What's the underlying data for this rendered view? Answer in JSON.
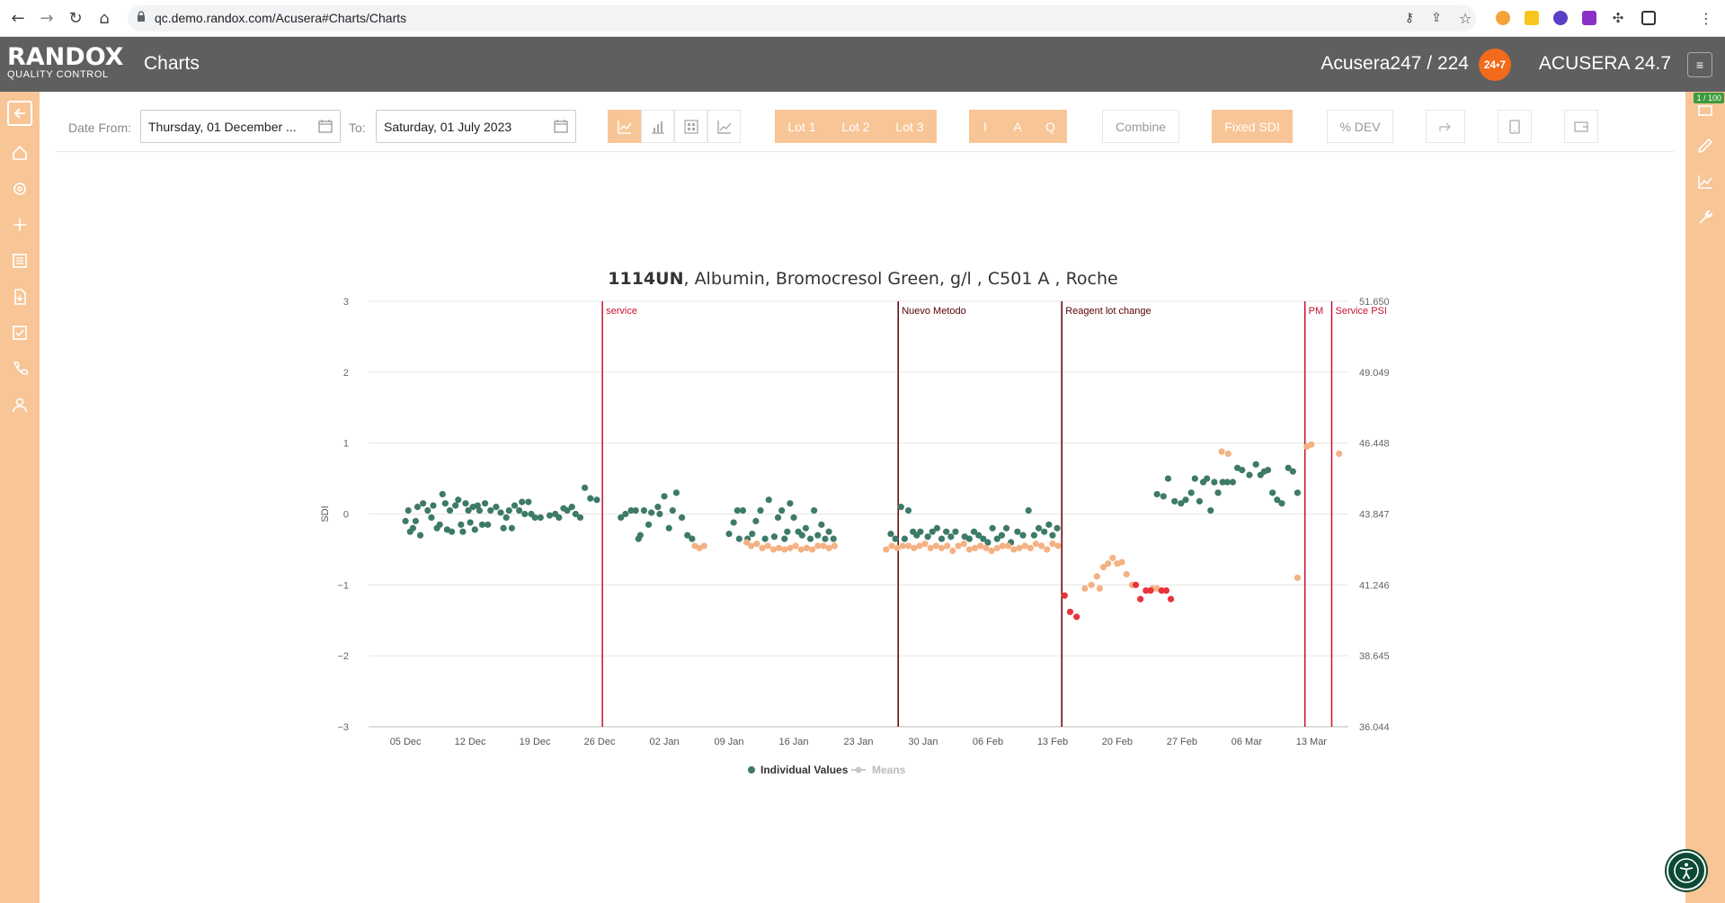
{
  "browser": {
    "url": "qc.demo.randox.com/Acusera#Charts/Charts",
    "icons": [
      "back-icon",
      "forward-icon",
      "reload-icon",
      "home-icon",
      "lock-icon",
      "key-icon",
      "share-icon",
      "star-icon",
      "extension-icon",
      "sidebar-icon",
      "kebab-icon"
    ]
  },
  "header": {
    "logo_main": "RANDOX",
    "logo_sub": "QUALITY CONTROL",
    "title": "Charts",
    "user": "Acusera247 / 224",
    "badge": "24•7",
    "brand": "ACUSERA 24.7",
    "menu_icon": "≡"
  },
  "left_sidebar": [
    "back-arrow-icon",
    "home-icon",
    "gear-icon",
    "plus-icon",
    "list-icon",
    "import-icon",
    "checklist-icon",
    "phone-icon",
    "user-icon"
  ],
  "right_sidebar": {
    "counter": "1 / 100",
    "icons": [
      "page-icon",
      "pencil-icon",
      "chart-icon",
      "wrench-icon"
    ]
  },
  "toolbar": {
    "date_from_label": "Date From:",
    "date_from_value": "Thursday, 01 December ...",
    "to_label": "To:",
    "to_value": "Saturday, 01 July 2023",
    "chart_type_icons": [
      "line-chart-icon",
      "bar-chart-icon",
      "grid-chart-icon",
      "trend-chart-icon"
    ],
    "lots": [
      "Lot 1",
      "Lot 2",
      "Lot 3"
    ],
    "modes": [
      "I",
      "A",
      "Q"
    ],
    "combine": "Combine",
    "fixed_sdi": "Fixed SDI",
    "pct_dev": "% DEV",
    "extra_icons": [
      "redo-icon",
      "tablet-icon",
      "wallet-icon"
    ]
  },
  "chart_data": {
    "type": "scatter",
    "title_bold": "1114UN",
    "title_rest": ", Albumin, Bromocresol Green, g/l , C501 A , Roche",
    "ylabel": "SDI",
    "ylim": [
      -3,
      3
    ],
    "y_ticks": [
      "−3",
      "−2",
      "−1",
      "0",
      "1",
      "2",
      "3"
    ],
    "y2_ticks": [
      "36.044",
      "38.645",
      "41.246",
      "43.847",
      "46.448",
      "49.049",
      "51.650"
    ],
    "x_ticks": [
      "05 Dec",
      "12 Dec",
      "19 Dec",
      "26 Dec",
      "02 Jan",
      "09 Jan",
      "16 Jan",
      "23 Jan",
      "30 Jan",
      "06 Feb",
      "13 Feb",
      "20 Feb",
      "27 Feb",
      "06 Mar",
      "13 Mar"
    ],
    "events": [
      {
        "label": "service",
        "x": 21.3,
        "color": "#c8102e"
      },
      {
        "label": "Nuevo Metodo",
        "x": 53.3,
        "color": "#5a0000"
      },
      {
        "label": "Reagent lot change",
        "x": 71.0,
        "color": "#5a0000"
      },
      {
        "label": "PM",
        "x": 97.3,
        "color": "#c8102e"
      },
      {
        "label": "Service PSI",
        "x": 100.2,
        "color": "#c8102e"
      }
    ],
    "legend": [
      {
        "name": "Individual Values",
        "color": "#3d7a68"
      },
      {
        "name": "Means",
        "color": "#c8c8c8"
      }
    ],
    "series": [
      {
        "name": "Individual Values",
        "color": "#3d7a68",
        "points": [
          [
            0,
            -0.1
          ],
          [
            0.3,
            0.05
          ],
          [
            0.5,
            -0.25
          ],
          [
            0.8,
            -0.2
          ],
          [
            1.1,
            -0.1
          ],
          [
            1.3,
            0.1
          ],
          [
            1.6,
            -0.3
          ],
          [
            1.9,
            0.15
          ],
          [
            2.4,
            0.05
          ],
          [
            2.8,
            -0.05
          ],
          [
            3.0,
            0.12
          ],
          [
            3.4,
            -0.2
          ],
          [
            3.7,
            -0.15
          ],
          [
            4.0,
            0.28
          ],
          [
            4.3,
            0.15
          ],
          [
            4.5,
            -0.22
          ],
          [
            4.8,
            0.05
          ],
          [
            5.0,
            -0.25
          ],
          [
            5.4,
            0.12
          ],
          [
            5.7,
            0.2
          ],
          [
            6.0,
            -0.15
          ],
          [
            6.2,
            -0.25
          ],
          [
            6.5,
            0.15
          ],
          [
            6.8,
            0.05
          ],
          [
            7.0,
            -0.12
          ],
          [
            7.3,
            0.1
          ],
          [
            7.5,
            -0.22
          ],
          [
            7.8,
            0.12
          ],
          [
            8.0,
            0.05
          ],
          [
            8.3,
            -0.15
          ],
          [
            8.6,
            0.15
          ],
          [
            8.9,
            -0.15
          ],
          [
            9.2,
            0.05
          ],
          [
            9.8,
            0.1
          ],
          [
            10.3,
            0.02
          ],
          [
            10.6,
            -0.2
          ],
          [
            10.9,
            -0.05
          ],
          [
            11.2,
            0.05
          ],
          [
            11.5,
            -0.2
          ],
          [
            11.8,
            0.12
          ],
          [
            12.3,
            0.05
          ],
          [
            12.6,
            0.17
          ],
          [
            12.9,
            0.0
          ],
          [
            13.3,
            0.17
          ],
          [
            13.6,
            0.0
          ],
          [
            14.0,
            -0.05
          ],
          [
            14.6,
            -0.05
          ],
          [
            15.6,
            -0.02
          ],
          [
            16.2,
            0.0
          ],
          [
            16.6,
            -0.05
          ],
          [
            17.1,
            0.08
          ],
          [
            17.5,
            0.05
          ],
          [
            18.0,
            0.1
          ],
          [
            18.4,
            0.0
          ],
          [
            18.9,
            -0.05
          ],
          [
            19.4,
            0.37
          ],
          [
            20.0,
            0.22
          ],
          [
            20.7,
            0.2
          ],
          [
            23.3,
            -0.05
          ],
          [
            23.8,
            0.0
          ],
          [
            24.4,
            0.05
          ],
          [
            24.9,
            0.05
          ],
          [
            25.2,
            -0.35
          ],
          [
            25.4,
            -0.3
          ],
          [
            25.8,
            0.05
          ],
          [
            26.3,
            -0.15
          ],
          [
            26.6,
            0.02
          ],
          [
            27.3,
            0.1
          ],
          [
            27.5,
            0.0
          ],
          [
            28.0,
            0.25
          ],
          [
            28.5,
            -0.2
          ],
          [
            28.9,
            0.05
          ],
          [
            29.3,
            0.3
          ],
          [
            29.9,
            -0.05
          ],
          [
            30.5,
            -0.3
          ],
          [
            31.0,
            -0.35
          ],
          [
            35.0,
            -0.28
          ],
          [
            35.5,
            -0.12
          ],
          [
            35.9,
            0.05
          ],
          [
            36.1,
            -0.35
          ],
          [
            36.5,
            0.05
          ],
          [
            37.0,
            -0.35
          ],
          [
            37.5,
            -0.28
          ],
          [
            37.9,
            -0.1
          ],
          [
            38.4,
            0.05
          ],
          [
            38.9,
            -0.35
          ],
          [
            39.3,
            0.2
          ],
          [
            39.9,
            -0.32
          ],
          [
            40.3,
            -0.05
          ],
          [
            40.7,
            0.05
          ],
          [
            41.0,
            -0.35
          ],
          [
            41.3,
            -0.25
          ],
          [
            41.6,
            0.15
          ],
          [
            42.0,
            -0.05
          ],
          [
            42.5,
            -0.25
          ],
          [
            42.9,
            -0.3
          ],
          [
            43.3,
            -0.2
          ],
          [
            43.8,
            -0.35
          ],
          [
            44.2,
            0.05
          ],
          [
            44.6,
            -0.3
          ],
          [
            45.0,
            -0.15
          ],
          [
            45.4,
            -0.35
          ],
          [
            45.8,
            -0.25
          ],
          [
            46.3,
            -0.35
          ],
          [
            52.5,
            -0.28
          ],
          [
            53.0,
            -0.35
          ],
          [
            53.6,
            0.1
          ],
          [
            54.0,
            -0.35
          ],
          [
            54.4,
            0.05
          ],
          [
            54.9,
            -0.25
          ],
          [
            55.3,
            -0.3
          ],
          [
            55.7,
            -0.25
          ],
          [
            56.5,
            -0.32
          ],
          [
            57.0,
            -0.25
          ],
          [
            57.5,
            -0.2
          ],
          [
            58.0,
            -0.35
          ],
          [
            58.5,
            -0.25
          ],
          [
            59.0,
            -0.32
          ],
          [
            59.5,
            -0.25
          ],
          [
            60.5,
            -0.32
          ],
          [
            61.0,
            -0.35
          ],
          [
            61.5,
            -0.25
          ],
          [
            62.0,
            -0.3
          ],
          [
            62.5,
            -0.35
          ],
          [
            63.0,
            -0.4
          ],
          [
            63.5,
            -0.2
          ],
          [
            64.0,
            -0.35
          ],
          [
            64.5,
            -0.3
          ],
          [
            65.0,
            -0.2
          ],
          [
            65.5,
            -0.4
          ],
          [
            66.2,
            -0.25
          ],
          [
            66.8,
            -0.3
          ],
          [
            67.4,
            0.05
          ],
          [
            68.0,
            -0.3
          ],
          [
            68.5,
            -0.2
          ],
          [
            69.1,
            -0.25
          ],
          [
            69.6,
            -0.15
          ],
          [
            70.0,
            -0.3
          ],
          [
            70.5,
            -0.2
          ],
          [
            81.3,
            0.28
          ],
          [
            82.0,
            0.25
          ],
          [
            82.5,
            0.5
          ],
          [
            83.2,
            0.18
          ],
          [
            83.9,
            0.15
          ],
          [
            84.4,
            0.2
          ],
          [
            85.0,
            0.3
          ],
          [
            85.4,
            0.5
          ],
          [
            85.9,
            0.18
          ],
          [
            86.3,
            0.45
          ],
          [
            86.7,
            0.5
          ],
          [
            87.1,
            0.05
          ],
          [
            87.5,
            0.45
          ],
          [
            87.9,
            0.3
          ],
          [
            88.4,
            0.45
          ],
          [
            88.9,
            0.45
          ],
          [
            89.5,
            0.45
          ],
          [
            90.0,
            0.65
          ],
          [
            90.5,
            0.62
          ],
          [
            91.3,
            0.55
          ],
          [
            92.0,
            0.7
          ],
          [
            92.5,
            0.55
          ],
          [
            92.9,
            0.6
          ],
          [
            93.3,
            0.62
          ],
          [
            93.8,
            0.3
          ],
          [
            94.3,
            0.2
          ],
          [
            94.8,
            0.15
          ],
          [
            95.5,
            0.65
          ],
          [
            96.0,
            0.6
          ],
          [
            96.5,
            0.3
          ]
        ]
      },
      {
        "name": "Lot 2",
        "color": "#f4b183",
        "points": [
          [
            31.3,
            -0.45
          ],
          [
            31.8,
            -0.48
          ],
          [
            32.3,
            -0.45
          ],
          [
            36.9,
            -0.4
          ],
          [
            37.4,
            -0.45
          ],
          [
            38.0,
            -0.42
          ],
          [
            38.6,
            -0.48
          ],
          [
            39.2,
            -0.45
          ],
          [
            39.8,
            -0.5
          ],
          [
            40.4,
            -0.48
          ],
          [
            41.0,
            -0.5
          ],
          [
            41.6,
            -0.48
          ],
          [
            42.2,
            -0.45
          ],
          [
            42.8,
            -0.5
          ],
          [
            43.4,
            -0.48
          ],
          [
            44.0,
            -0.5
          ],
          [
            44.6,
            -0.45
          ],
          [
            45.2,
            -0.45
          ],
          [
            45.8,
            -0.48
          ],
          [
            46.4,
            -0.45
          ],
          [
            52.0,
            -0.5
          ],
          [
            52.6,
            -0.45
          ],
          [
            53.2,
            -0.48
          ],
          [
            53.8,
            -0.45
          ],
          [
            54.4,
            -0.45
          ],
          [
            55.0,
            -0.48
          ],
          [
            55.6,
            -0.45
          ],
          [
            56.2,
            -0.42
          ],
          [
            56.8,
            -0.48
          ],
          [
            57.4,
            -0.45
          ],
          [
            58.0,
            -0.48
          ],
          [
            58.6,
            -0.45
          ],
          [
            59.2,
            -0.52
          ],
          [
            59.8,
            -0.45
          ],
          [
            60.4,
            -0.42
          ],
          [
            61.0,
            -0.5
          ],
          [
            61.6,
            -0.48
          ],
          [
            62.2,
            -0.45
          ],
          [
            62.8,
            -0.48
          ],
          [
            63.4,
            -0.52
          ],
          [
            64.0,
            -0.48
          ],
          [
            64.6,
            -0.45
          ],
          [
            65.2,
            -0.45
          ],
          [
            65.8,
            -0.5
          ],
          [
            66.4,
            -0.48
          ],
          [
            67.0,
            -0.45
          ],
          [
            67.6,
            -0.48
          ],
          [
            68.2,
            -0.42
          ],
          [
            68.8,
            -0.45
          ],
          [
            69.4,
            -0.5
          ],
          [
            70.0,
            -0.42
          ],
          [
            70.6,
            -0.45
          ],
          [
            73.5,
            -1.05
          ],
          [
            74.2,
            -1.0
          ],
          [
            74.8,
            -0.88
          ],
          [
            75.1,
            -1.05
          ],
          [
            75.5,
            -0.75
          ],
          [
            76.0,
            -0.7
          ],
          [
            76.5,
            -0.62
          ],
          [
            77.0,
            -0.7
          ],
          [
            77.5,
            -0.68
          ],
          [
            78.0,
            -0.85
          ],
          [
            78.6,
            -1.0
          ],
          [
            80.8,
            -1.05
          ],
          [
            81.3,
            -1.05
          ],
          [
            88.3,
            0.88
          ],
          [
            89.0,
            0.85
          ],
          [
            96.5,
            -0.9
          ],
          [
            97.5,
            0.95
          ],
          [
            98.0,
            0.98
          ],
          [
            101.0,
            0.85
          ]
        ]
      },
      {
        "name": "Lot 3",
        "color": "#e8333b",
        "points": [
          [
            71.3,
            -1.15
          ],
          [
            71.9,
            -1.38
          ],
          [
            72.6,
            -1.45
          ],
          [
            79.0,
            -1.0
          ],
          [
            79.5,
            -1.2
          ],
          [
            80.1,
            -1.08
          ],
          [
            80.6,
            -1.08
          ],
          [
            81.8,
            -1.08
          ],
          [
            82.3,
            -1.08
          ],
          [
            82.8,
            -1.2
          ]
        ]
      }
    ]
  }
}
